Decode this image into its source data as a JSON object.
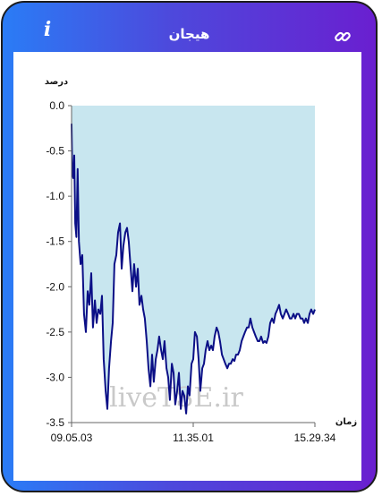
{
  "header": {
    "title": "هیجان",
    "info_icon": "info-icon",
    "link_icon": "link-icon"
  },
  "colors": {
    "gradient_start": "#2a7cf6",
    "gradient_end": "#6a1fd0",
    "area_fill": "#c8e6ef",
    "line": "#0b0f86",
    "watermark": "#c9c9c9"
  },
  "watermark": "liveTSE.ir",
  "chart_data": {
    "type": "line",
    "title": "",
    "ylabel": "درصد",
    "xlabel": "زمان",
    "ylim": [
      -3.5,
      0.0
    ],
    "yticks": [
      "0.0",
      "-0.5",
      "-1.0",
      "-1.5",
      "-2.0",
      "-2.5",
      "-3.0",
      "-3.5"
    ],
    "xtick_labels": [
      "09.05.03",
      "11.35.01",
      "15.29.34"
    ],
    "grid": false,
    "series": [
      {
        "x": [
          0,
          0.3,
          0.7,
          1.1,
          1.5,
          2.0,
          2.5,
          3.0,
          3.7,
          4.4,
          5.1,
          5.9,
          6.6,
          7.3,
          8.1,
          8.8,
          9.6,
          10.3,
          11.0,
          11.8,
          12.5,
          13.2,
          14.0,
          14.7,
          15.4,
          16.2,
          16.9,
          17.6,
          18.4,
          19.1,
          19.9,
          20.6,
          21.3,
          22.1,
          22.8,
          23.5,
          24.3,
          25.0,
          25.7,
          26.5,
          27.2,
          27.9,
          28.7,
          29.4,
          30.1,
          30.9,
          31.6,
          32.4,
          33.1,
          33.8,
          34.6,
          35.3,
          36.0,
          36.8,
          37.5,
          38.2,
          39.0,
          39.7,
          40.4,
          41.2,
          41.9,
          42.6,
          43.4,
          44.1,
          44.9,
          45.6,
          46.3,
          47.1,
          47.8,
          48.5,
          49.3,
          50.0,
          50.7,
          51.5,
          52.2,
          52.9,
          53.7,
          54.4,
          55.1,
          55.9,
          56.6,
          57.4,
          58.1,
          58.8,
          59.6,
          60.3,
          61.0,
          61.8,
          62.5,
          63.2,
          64.0,
          64.7,
          65.4,
          66.2,
          66.9,
          67.6,
          68.4,
          69.1,
          69.9,
          70.6,
          71.3,
          72.1,
          72.8,
          73.5,
          74.3,
          75.0,
          75.7,
          76.5,
          77.2,
          77.9,
          78.7,
          79.4,
          80.1,
          80.9,
          81.6,
          82.4,
          83.1,
          83.8,
          84.6,
          85.3,
          86.0,
          86.8,
          87.5,
          88.2,
          89.0,
          89.7,
          90.4,
          91.2,
          91.9,
          92.6,
          93.4,
          94.1,
          94.9,
          95.6,
          96.3,
          97.1,
          97.8,
          98.5,
          99.3,
          100.0
        ],
        "y": [
          -0.2,
          -0.75,
          -0.8,
          -0.55,
          -1.3,
          -1.45,
          -0.7,
          -1.5,
          -1.75,
          -1.65,
          -2.3,
          -2.5,
          -2.05,
          -2.2,
          -1.85,
          -2.45,
          -2.15,
          -2.4,
          -2.25,
          -2.3,
          -2.1,
          -2.8,
          -3.15,
          -3.35,
          -2.9,
          -2.6,
          -2.4,
          -1.75,
          -1.65,
          -1.4,
          -1.3,
          -1.8,
          -1.55,
          -1.4,
          -1.35,
          -1.5,
          -1.8,
          -2.05,
          -1.75,
          -2.0,
          -1.8,
          -2.2,
          -2.1,
          -2.25,
          -2.35,
          -2.6,
          -2.9,
          -3.1,
          -2.75,
          -3.05,
          -2.8,
          -2.7,
          -2.55,
          -2.7,
          -2.8,
          -2.6,
          -2.9,
          -3.0,
          -3.25,
          -2.85,
          -2.95,
          -3.3,
          -3.15,
          -2.95,
          -3.35,
          -3.15,
          -3.2,
          -3.4,
          -3.1,
          -3.2,
          -2.85,
          -2.8,
          -2.5,
          -2.55,
          -2.8,
          -3.15,
          -2.9,
          -2.85,
          -2.7,
          -2.6,
          -2.7,
          -2.65,
          -2.7,
          -2.55,
          -2.45,
          -2.5,
          -2.6,
          -2.75,
          -2.8,
          -2.85,
          -2.9,
          -2.85,
          -2.85,
          -2.8,
          -2.82,
          -2.75,
          -2.75,
          -2.7,
          -2.6,
          -2.55,
          -2.5,
          -2.45,
          -2.45,
          -2.35,
          -2.45,
          -2.5,
          -2.55,
          -2.6,
          -2.6,
          -2.55,
          -2.62,
          -2.6,
          -2.62,
          -2.55,
          -2.4,
          -2.35,
          -2.4,
          -2.3,
          -2.25,
          -2.2,
          -2.3,
          -2.35,
          -2.3,
          -2.25,
          -2.3,
          -2.35,
          -2.35,
          -2.3,
          -2.35,
          -2.3,
          -2.3,
          -2.35,
          -2.35,
          -2.4,
          -2.35,
          -2.4,
          -2.3,
          -2.25,
          -2.3,
          -2.25
        ]
      }
    ]
  }
}
